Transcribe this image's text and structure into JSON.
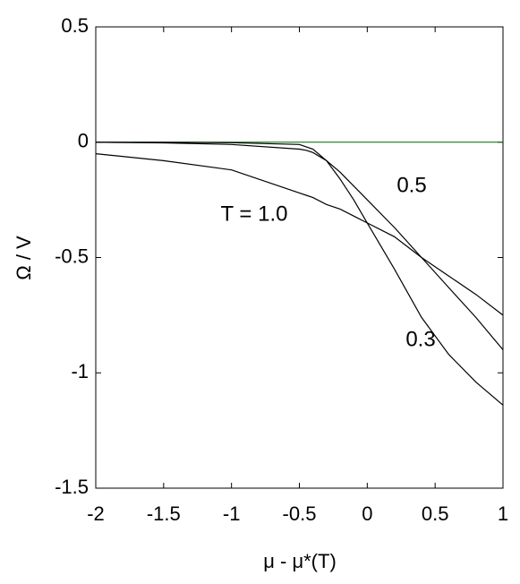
{
  "chart_data": {
    "type": "line",
    "xlabel": "μ - μ*(T)",
    "ylabel": "Ω / V",
    "x": [
      -2,
      -1.5,
      -1,
      -0.5,
      -0.45,
      -0.4,
      -0.3,
      -0.2,
      -0.1,
      0,
      0.2,
      0.4,
      0.6,
      0.8,
      1
    ],
    "series": [
      {
        "name": "0.3",
        "color": "#000000",
        "values": [
          0,
          0,
          -0.002,
          -0.01,
          -0.02,
          -0.03,
          -0.08,
          -0.16,
          -0.25,
          -0.35,
          -0.55,
          -0.76,
          -0.92,
          -1.04,
          -1.14
        ]
      },
      {
        "name": "0.5",
        "color": "#000000",
        "values": [
          0,
          -0.003,
          -0.01,
          -0.03,
          -0.035,
          -0.045,
          -0.08,
          -0.13,
          -0.19,
          -0.25,
          -0.37,
          -0.5,
          -0.63,
          -0.76,
          -0.9
        ]
      },
      {
        "name": "T = 1.0",
        "color": "#000000",
        "values": [
          -0.05,
          -0.08,
          -0.12,
          -0.22,
          -0.23,
          -0.24,
          -0.27,
          -0.29,
          -0.32,
          -0.35,
          -0.41,
          -0.5,
          -0.58,
          -0.66,
          -0.75
        ]
      }
    ],
    "hline": {
      "value": 0,
      "color": "#006400"
    },
    "xlim": [
      -2,
      1
    ],
    "xticks": [
      -2,
      -1.5,
      -1,
      -0.5,
      0,
      0.5,
      1
    ],
    "ylim": [
      -1.5,
      0.5
    ],
    "yticks": [
      -1.5,
      -1,
      -0.5,
      0,
      0.5
    ]
  }
}
